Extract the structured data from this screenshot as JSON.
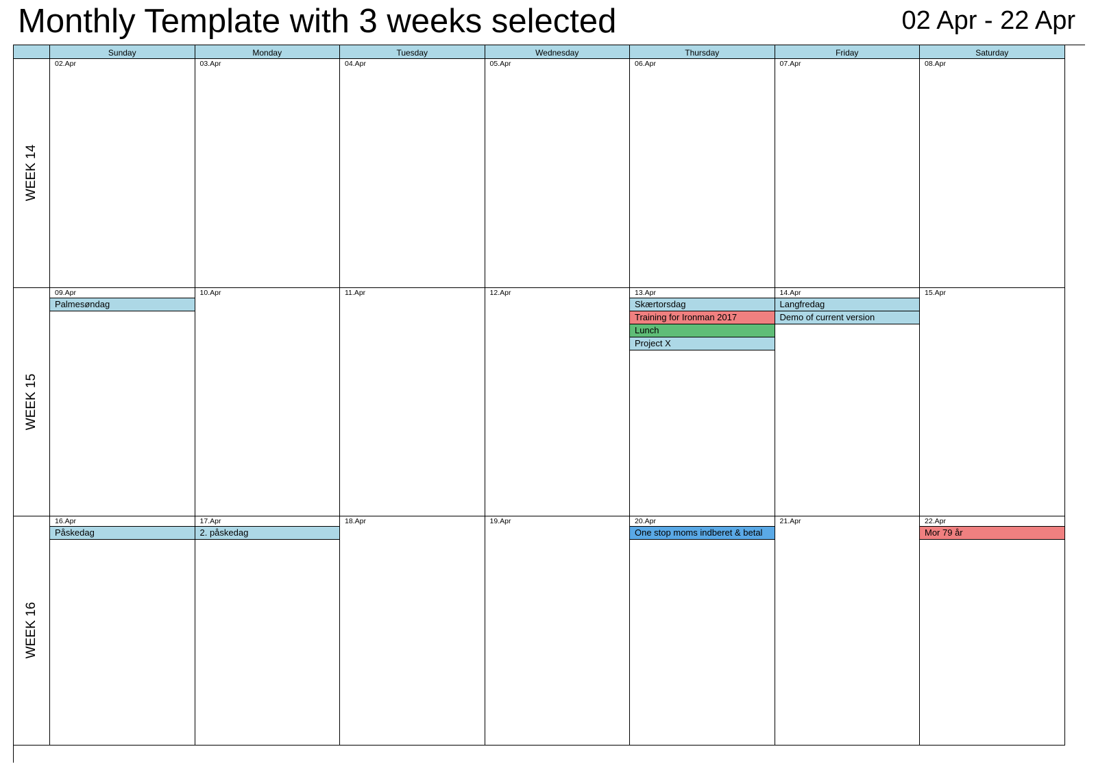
{
  "header": {
    "title": "Monthly Template with 3 weeks selected",
    "range": "02 Apr - 22 Apr"
  },
  "colors": {
    "header_bg": "#add8e6",
    "event_lightblue": "#add8e6",
    "event_red": "#f08080",
    "event_green": "#5fbd77",
    "event_blue": "#5aa9e6",
    "grid_line": "#000000"
  },
  "days_of_week": [
    "Sunday",
    "Monday",
    "Tuesday",
    "Wednesday",
    "Thursday",
    "Friday",
    "Saturday"
  ],
  "weeks": [
    {
      "label": "WEEK 14",
      "days": [
        {
          "date": "02.Apr",
          "events": []
        },
        {
          "date": "03.Apr",
          "events": []
        },
        {
          "date": "04.Apr",
          "events": []
        },
        {
          "date": "05.Apr",
          "events": []
        },
        {
          "date": "06.Apr",
          "events": []
        },
        {
          "date": "07.Apr",
          "events": []
        },
        {
          "date": "08.Apr",
          "events": []
        }
      ]
    },
    {
      "label": "WEEK 15",
      "days": [
        {
          "date": "09.Apr",
          "events": [
            {
              "title": "Palmesøndag",
              "color": "lightblue"
            }
          ]
        },
        {
          "date": "10.Apr",
          "events": []
        },
        {
          "date": "11.Apr",
          "events": []
        },
        {
          "date": "12.Apr",
          "events": []
        },
        {
          "date": "13.Apr",
          "events": [
            {
              "title": "Skærtorsdag",
              "color": "lightblue"
            },
            {
              "title": "Training for Ironman 2017",
              "color": "red"
            },
            {
              "title": "Lunch",
              "color": "green"
            },
            {
              "title": "Project X",
              "color": "lightblue"
            }
          ]
        },
        {
          "date": "14.Apr",
          "events": [
            {
              "title": "Langfredag",
              "color": "lightblue"
            },
            {
              "title": "Demo of current version",
              "color": "lightblue"
            }
          ]
        },
        {
          "date": "15.Apr",
          "events": []
        }
      ]
    },
    {
      "label": "WEEK 16",
      "days": [
        {
          "date": "16.Apr",
          "events": [
            {
              "title": "Påskedag",
              "color": "lightblue"
            }
          ]
        },
        {
          "date": "17.Apr",
          "events": [
            {
              "title": "2. påskedag",
              "color": "lightblue"
            }
          ]
        },
        {
          "date": "18.Apr",
          "events": []
        },
        {
          "date": "19.Apr",
          "events": []
        },
        {
          "date": "20.Apr",
          "events": [
            {
              "title": "One stop moms indberet & betal",
              "color": "blue"
            }
          ]
        },
        {
          "date": "21.Apr",
          "events": []
        },
        {
          "date": "22.Apr",
          "events": [
            {
              "title": "Mor 79 år",
              "color": "red"
            }
          ]
        }
      ]
    }
  ]
}
